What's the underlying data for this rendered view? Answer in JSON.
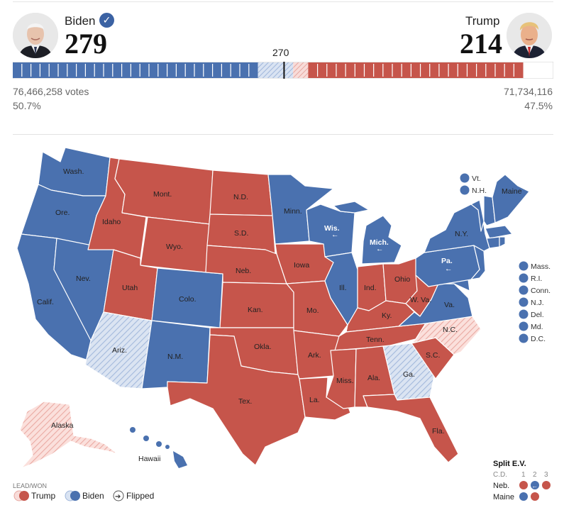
{
  "header": {
    "biden": {
      "name": "Biden",
      "electoral_votes": "279",
      "votes": "76,466,258 votes",
      "percent": "50.7%",
      "winner": true
    },
    "trump": {
      "name": "Trump",
      "electoral_votes": "214",
      "votes": "71,734,116",
      "percent": "47.5%"
    },
    "threshold": "270",
    "total_electoral_votes": 538,
    "bar": {
      "biden_won": 244,
      "biden_lead": 35,
      "trump_lead": 15,
      "trump_won": 214
    }
  },
  "colors": {
    "biden": "#4a71af",
    "trump": "#c6554b",
    "biden_lead": "#d4dff0",
    "trump_lead": "#f6d6d3",
    "won_stripe": "#ffffff"
  },
  "map": {
    "states": [
      {
        "abbr": "Wash.",
        "status": "biden-won"
      },
      {
        "abbr": "Ore.",
        "status": "biden-won"
      },
      {
        "abbr": "Calif.",
        "status": "biden-won"
      },
      {
        "abbr": "Nev.",
        "status": "biden-won"
      },
      {
        "abbr": "Idaho",
        "status": "trump-won"
      },
      {
        "abbr": "Mont.",
        "status": "trump-won"
      },
      {
        "abbr": "Wyo.",
        "status": "trump-won"
      },
      {
        "abbr": "Utah",
        "status": "trump-won"
      },
      {
        "abbr": "Colo.",
        "status": "biden-won"
      },
      {
        "abbr": "Ariz.",
        "status": "biden-lead-flipped"
      },
      {
        "abbr": "N.M.",
        "status": "biden-won"
      },
      {
        "abbr": "N.D.",
        "status": "trump-won"
      },
      {
        "abbr": "S.D.",
        "status": "trump-won"
      },
      {
        "abbr": "Neb.",
        "status": "trump-won"
      },
      {
        "abbr": "Kan.",
        "status": "trump-won"
      },
      {
        "abbr": "Okla.",
        "status": "trump-won"
      },
      {
        "abbr": "Tex.",
        "status": "trump-won"
      },
      {
        "abbr": "Minn.",
        "status": "biden-won"
      },
      {
        "abbr": "Iowa",
        "status": "trump-won"
      },
      {
        "abbr": "Mo.",
        "status": "trump-won"
      },
      {
        "abbr": "Ark.",
        "status": "trump-won"
      },
      {
        "abbr": "La.",
        "status": "trump-won"
      },
      {
        "abbr": "Wis.",
        "status": "biden-won-flipped"
      },
      {
        "abbr": "Ill.",
        "status": "biden-won"
      },
      {
        "abbr": "Mich.",
        "status": "biden-won-flipped"
      },
      {
        "abbr": "Ind.",
        "status": "trump-won"
      },
      {
        "abbr": "Ohio",
        "status": "trump-won"
      },
      {
        "abbr": "Ky.",
        "status": "trump-won"
      },
      {
        "abbr": "Tenn.",
        "status": "trump-won"
      },
      {
        "abbr": "Miss.",
        "status": "trump-won"
      },
      {
        "abbr": "Ala.",
        "status": "trump-won"
      },
      {
        "abbr": "Ga.",
        "status": "biden-lead-flipped"
      },
      {
        "abbr": "Fla.",
        "status": "trump-won"
      },
      {
        "abbr": "S.C.",
        "status": "trump-won"
      },
      {
        "abbr": "N.C.",
        "status": "trump-lead"
      },
      {
        "abbr": "W. Va.",
        "status": "trump-won"
      },
      {
        "abbr": "Va.",
        "status": "biden-won"
      },
      {
        "abbr": "Pa.",
        "status": "biden-won-flipped"
      },
      {
        "abbr": "N.Y.",
        "status": "biden-won"
      },
      {
        "abbr": "Maine",
        "status": "biden-won"
      },
      {
        "abbr": "Alaska",
        "status": "trump-lead"
      },
      {
        "abbr": "Hawaii",
        "status": "biden-won"
      }
    ],
    "small_states": [
      "Vt.",
      "N.H."
    ],
    "east_states": [
      "Mass.",
      "R.I.",
      "Conn.",
      "N.J.",
      "Del.",
      "Md.",
      "D.C."
    ]
  },
  "legend": {
    "title": "LEAD/WON",
    "trump": "Trump",
    "biden": "Biden",
    "flipped": "Flipped"
  },
  "split": {
    "title": "Split E.V.",
    "cd_label": "C.D.",
    "districts": [
      "1",
      "2",
      "3"
    ],
    "neb_label": "Neb.",
    "maine_label": "Maine"
  }
}
